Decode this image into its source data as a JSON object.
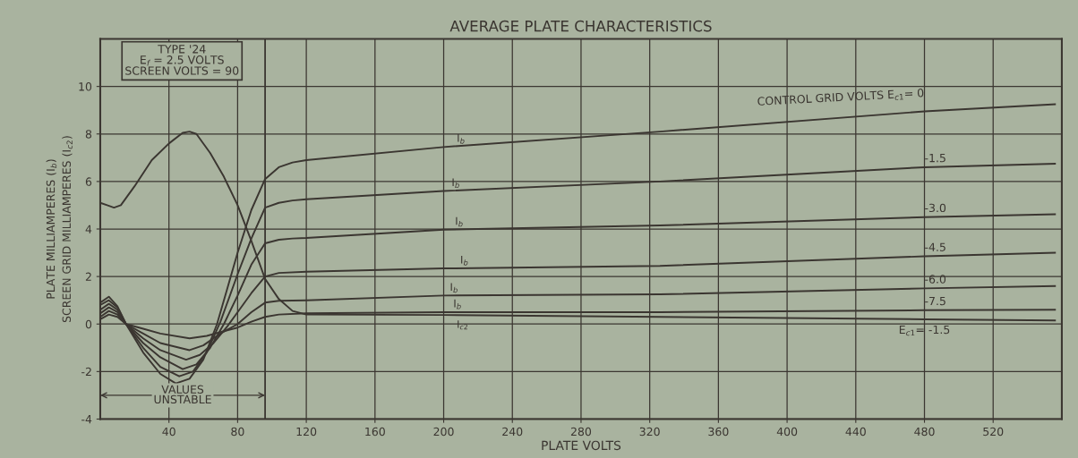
{
  "chart_data": {
    "type": "line",
    "title": "AVERAGE PLATE CHARACTERISTICS",
    "xlabel": "PLATE VOLTS",
    "ylabel": "PLATE MILLIAMPERES (I$_{b}$)\nSCREEN GRID MILLIAMPERES (I$_{c2}$)",
    "xlim": [
      0,
      560
    ],
    "xticks": [
      40,
      80,
      120,
      160,
      200,
      240,
      280,
      320,
      360,
      400,
      440,
      480,
      520
    ],
    "ylim": [
      -4,
      12
    ],
    "yticks": [
      -4,
      -2,
      0,
      2,
      4,
      6,
      8,
      10
    ],
    "grid": true,
    "legend": false,
    "marker": "none",
    "line_style": "solid",
    "series": [
      {
        "name": "CONTROL GRID VOLTS E$_{c1}$= 0",
        "color": "#3b3631",
        "x": [
          0,
          5,
          10,
          15,
          25,
          35,
          44,
          52,
          60,
          68,
          74,
          80,
          88,
          96,
          104,
          112,
          120,
          200,
          326,
          480,
          556
        ],
        "values": [
          0.9,
          1.15,
          0.75,
          0,
          -1.2,
          -2.1,
          -2.5,
          -2.3,
          -1.5,
          0.0,
          1.5,
          3.0,
          4.8,
          6.1,
          6.6,
          6.8,
          6.9,
          7.45,
          8.1,
          8.95,
          9.25
        ]
      },
      {
        "name": "-1.5",
        "color": "#3b3631",
        "x": [
          0,
          5,
          10,
          15,
          25,
          35,
          46,
          54,
          62,
          70,
          80,
          88,
          96,
          104,
          112,
          120,
          200,
          326,
          480,
          556
        ],
        "values": [
          0.8,
          1.0,
          0.7,
          0,
          -1.0,
          -1.8,
          -2.2,
          -2.0,
          -1.2,
          0.1,
          2.1,
          3.6,
          4.9,
          5.1,
          5.2,
          5.25,
          5.6,
          6.0,
          6.6,
          6.75
        ]
      },
      {
        "name": "-3.0",
        "color": "#3b3631",
        "x": [
          0,
          5,
          10,
          15,
          25,
          35,
          48,
          56,
          64,
          72,
          80,
          88,
          96,
          104,
          112,
          120,
          200,
          326,
          480,
          556
        ],
        "values": [
          0.6,
          0.85,
          0.6,
          0,
          -0.8,
          -1.4,
          -1.9,
          -1.7,
          -1.0,
          0.0,
          1.2,
          2.5,
          3.4,
          3.55,
          3.6,
          3.62,
          3.97,
          4.15,
          4.5,
          4.62
        ]
      },
      {
        "name": "-4.5",
        "color": "#3b3631",
        "x": [
          0,
          5,
          10,
          15,
          25,
          35,
          50,
          58,
          66,
          74,
          80,
          88,
          96,
          104,
          120,
          200,
          326,
          480,
          556
        ],
        "values": [
          0.45,
          0.7,
          0.5,
          0,
          -0.6,
          -1.1,
          -1.5,
          -1.3,
          -0.8,
          -0.1,
          0.5,
          1.3,
          2.0,
          2.15,
          2.2,
          2.34,
          2.45,
          2.85,
          3.0
        ]
      },
      {
        "name": "-6.0",
        "color": "#3b3631",
        "x": [
          0,
          5,
          10,
          15,
          25,
          35,
          52,
          60,
          70,
          80,
          88,
          96,
          104,
          120,
          200,
          326,
          480,
          556
        ],
        "values": [
          0.3,
          0.55,
          0.4,
          0,
          -0.4,
          -0.8,
          -1.1,
          -0.9,
          -0.4,
          0.0,
          0.5,
          0.9,
          0.98,
          1.0,
          1.2,
          1.25,
          1.5,
          1.6
        ]
      },
      {
        "name": "-7.5",
        "color": "#3b3631",
        "x": [
          0,
          5,
          10,
          15,
          25,
          35,
          52,
          62,
          72,
          80,
          88,
          96,
          104,
          120,
          200,
          326,
          480,
          556
        ],
        "values": [
          0.2,
          0.4,
          0.3,
          0,
          -0.2,
          -0.4,
          -0.6,
          -0.5,
          -0.3,
          -0.15,
          0.1,
          0.3,
          0.4,
          0.45,
          0.5,
          0.5,
          0.58,
          0.6
        ]
      },
      {
        "name": "E$_{c1}$= -1.5",
        "color": "#3b3631",
        "x": [
          0,
          4,
          8,
          12,
          20,
          30,
          40,
          48,
          52,
          56,
          64,
          72,
          80,
          88,
          96,
          104,
          112,
          120,
          200,
          326,
          480,
          556
        ],
        "values": [
          5.1,
          5.0,
          4.9,
          5.0,
          5.8,
          6.9,
          7.6,
          8.05,
          8.1,
          8.0,
          7.2,
          6.2,
          5.0,
          3.5,
          1.9,
          1.05,
          0.55,
          0.4,
          0.38,
          0.3,
          0.2,
          0.15
        ]
      }
    ],
    "ref_lines": [
      {
        "axis": "x",
        "value": 96,
        "color": "#3b3631"
      }
    ],
    "annotations": [
      "TYPE '24\nE$_{f}$ = 2.5 VOLTS\nSCREEN VOLTS = 90",
      "VALUES\nUNSTABLE",
      {
        "text": "I$_{b}$",
        "x": 210,
        "y": 7.47
      },
      {
        "text": "I$_{b}$",
        "x": 207,
        "y": 5.61
      },
      {
        "text": "I$_{b}$",
        "x": 209,
        "y": 3.98
      },
      {
        "text": "I$_{b}$",
        "x": 212,
        "y": 2.35
      },
      {
        "text": "I$_{b}$",
        "x": 206,
        "y": 1.2
      },
      {
        "text": "I$_{b}$",
        "x": 208,
        "y": 0.51
      },
      {
        "text": "I$_{c2}$",
        "x": 211,
        "y": 0.37
      }
    ]
  }
}
